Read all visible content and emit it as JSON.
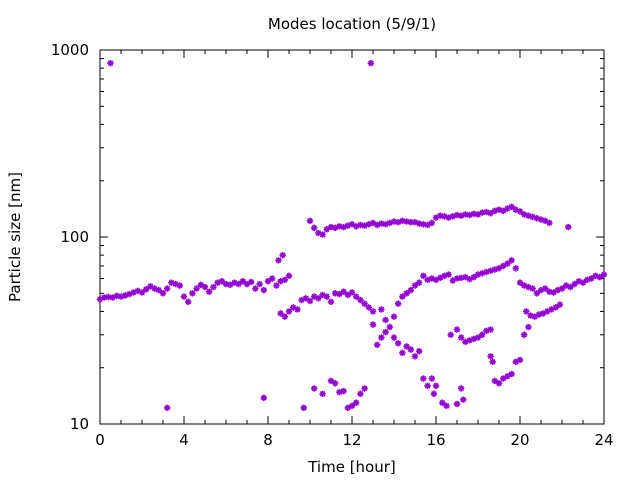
{
  "chart_data": {
    "type": "scatter",
    "title": "Modes location (5/9/1)",
    "xlabel": "Time [hour]",
    "ylabel": "Particle size [nm]",
    "xlim": [
      0,
      24
    ],
    "ylim": [
      10,
      1000
    ],
    "yscale": "log",
    "grid": false,
    "legend": "none",
    "marker_color": "#9400d3",
    "x_ticks": [
      0,
      4,
      8,
      12,
      16,
      20,
      24
    ],
    "x_tick_labels": [
      "0",
      "4",
      "8",
      "12",
      "16",
      "20",
      "24"
    ],
    "y_ticks": [
      10,
      100,
      1000
    ],
    "y_tick_labels": [
      "10",
      "100",
      "1000"
    ],
    "series": [
      {
        "values": [
          [
            0.5,
            850
          ],
          [
            12.9,
            850
          ],
          [
            3.2,
            12.2
          ],
          [
            7.8,
            13.8
          ],
          [
            9.7,
            12.2
          ],
          [
            0.0,
            46.5
          ],
          [
            0.2,
            47.5
          ],
          [
            0.4,
            47.8
          ],
          [
            0.6,
            47.5
          ],
          [
            0.8,
            48.5
          ],
          [
            1.0,
            48.0
          ],
          [
            1.2,
            48.7
          ],
          [
            1.4,
            49.5
          ],
          [
            1.6,
            50.5
          ],
          [
            1.8,
            51.5
          ],
          [
            2.0,
            50.5
          ],
          [
            2.2,
            52.5
          ],
          [
            2.4,
            54.5
          ],
          [
            2.6,
            53.0
          ],
          [
            2.8,
            52.0
          ],
          [
            3.0,
            50.0
          ],
          [
            3.2,
            53.0
          ],
          [
            3.4,
            57.0
          ],
          [
            3.6,
            56.0
          ],
          [
            3.8,
            55.0
          ],
          [
            4.0,
            48.0
          ],
          [
            4.2,
            45.0
          ],
          [
            4.4,
            50.0
          ],
          [
            4.6,
            53.0
          ],
          [
            4.8,
            55.5
          ],
          [
            5.0,
            54.0
          ],
          [
            5.2,
            51.0
          ],
          [
            5.4,
            54.0
          ],
          [
            5.6,
            57.0
          ],
          [
            5.8,
            58.0
          ],
          [
            6.0,
            56.0
          ],
          [
            6.2,
            55.5
          ],
          [
            6.4,
            57.0
          ],
          [
            6.6,
            56.0
          ],
          [
            6.8,
            58.0
          ],
          [
            7.0,
            56.0
          ],
          [
            7.2,
            57.5
          ],
          [
            7.4,
            53.0
          ],
          [
            7.6,
            56.0
          ],
          [
            7.8,
            52.0
          ],
          [
            8.0,
            58.0
          ],
          [
            8.2,
            60.0
          ],
          [
            8.4,
            55.0
          ],
          [
            8.6,
            58.0
          ],
          [
            8.8,
            59.0
          ],
          [
            9.0,
            62.0
          ],
          [
            8.5,
            75.0
          ],
          [
            8.7,
            80.0
          ],
          [
            8.6,
            39.0
          ],
          [
            8.8,
            37.5
          ],
          [
            9.0,
            40.0
          ],
          [
            9.2,
            42.0
          ],
          [
            9.4,
            41.0
          ],
          [
            9.6,
            46.0
          ],
          [
            9.8,
            47.0
          ],
          [
            10.0,
            45.5
          ],
          [
            10.2,
            48.0
          ],
          [
            10.4,
            47.0
          ],
          [
            10.6,
            49.0
          ],
          [
            10.8,
            48.0
          ],
          [
            11.0,
            45.0
          ],
          [
            11.2,
            50.0
          ],
          [
            11.4,
            49.5
          ],
          [
            11.6,
            51.0
          ],
          [
            11.8,
            49.0
          ],
          [
            12.0,
            50.5
          ],
          [
            12.2,
            48.0
          ],
          [
            12.4,
            46.0
          ],
          [
            12.6,
            44.0
          ],
          [
            12.8,
            42.0
          ],
          [
            13.0,
            40.0
          ],
          [
            10.0,
            122
          ],
          [
            10.2,
            112
          ],
          [
            10.4,
            105
          ],
          [
            10.6,
            103
          ],
          [
            10.8,
            110
          ],
          [
            11.0,
            113
          ],
          [
            11.2,
            112
          ],
          [
            11.4,
            114
          ],
          [
            11.6,
            113
          ],
          [
            11.8,
            115
          ],
          [
            12.0,
            117
          ],
          [
            12.2,
            114
          ],
          [
            12.4,
            116
          ],
          [
            12.6,
            115
          ],
          [
            12.8,
            117
          ],
          [
            13.0,
            119
          ],
          [
            13.2,
            116
          ],
          [
            13.4,
            118
          ],
          [
            13.6,
            117
          ],
          [
            13.8,
            119
          ],
          [
            14.0,
            121
          ],
          [
            14.2,
            120
          ],
          [
            14.4,
            122
          ],
          [
            14.6,
            121
          ],
          [
            14.8,
            120
          ],
          [
            15.0,
            120
          ],
          [
            15.2,
            118
          ],
          [
            15.4,
            117
          ],
          [
            15.6,
            116
          ],
          [
            15.8,
            119
          ],
          [
            16.0,
            127
          ],
          [
            16.2,
            130
          ],
          [
            16.4,
            129
          ],
          [
            16.6,
            127
          ],
          [
            16.8,
            129
          ],
          [
            17.0,
            131
          ],
          [
            17.2,
            130
          ],
          [
            17.4,
            132
          ],
          [
            17.6,
            131
          ],
          [
            17.8,
            133
          ],
          [
            18.0,
            132
          ],
          [
            18.2,
            135
          ],
          [
            18.4,
            136
          ],
          [
            18.6,
            134
          ],
          [
            18.8,
            138
          ],
          [
            19.0,
            140
          ],
          [
            19.2,
            138
          ],
          [
            19.4,
            142
          ],
          [
            19.6,
            145
          ],
          [
            19.8,
            140
          ],
          [
            20.0,
            137
          ],
          [
            20.2,
            132
          ],
          [
            20.4,
            130
          ],
          [
            20.6,
            128
          ],
          [
            20.8,
            126
          ],
          [
            21.0,
            124
          ],
          [
            21.2,
            122
          ],
          [
            21.4,
            119
          ],
          [
            22.3,
            113
          ],
          [
            10.2,
            15.5
          ],
          [
            10.6,
            14.5
          ],
          [
            11.0,
            17.0
          ],
          [
            11.2,
            16.5
          ],
          [
            11.4,
            14.8
          ],
          [
            11.6,
            15.0
          ],
          [
            11.8,
            12.2
          ],
          [
            12.0,
            12.5
          ],
          [
            12.2,
            13.0
          ],
          [
            12.4,
            14.5
          ],
          [
            12.6,
            15.5
          ],
          [
            13.0,
            34.0
          ],
          [
            13.2,
            26.5
          ],
          [
            13.4,
            29.0
          ],
          [
            13.6,
            31.0
          ],
          [
            13.8,
            33.0
          ],
          [
            14.0,
            29.0
          ],
          [
            14.2,
            27.0
          ],
          [
            14.4,
            24.0
          ],
          [
            14.6,
            26.0
          ],
          [
            14.8,
            25.0
          ],
          [
            15.0,
            23.0
          ],
          [
            15.2,
            24.5
          ],
          [
            13.4,
            41.0
          ],
          [
            13.6,
            36.0
          ],
          [
            14.0,
            37.5
          ],
          [
            14.2,
            44.0
          ],
          [
            14.4,
            48.0
          ],
          [
            14.6,
            50.0
          ],
          [
            14.8,
            52.0
          ],
          [
            15.0,
            55.0
          ],
          [
            15.2,
            57.0
          ],
          [
            15.4,
            62.0
          ],
          [
            15.6,
            59.0
          ],
          [
            15.8,
            60.0
          ],
          [
            16.0,
            59.0
          ],
          [
            16.2,
            60.5
          ],
          [
            16.4,
            62.0
          ],
          [
            16.6,
            63.0
          ],
          [
            16.8,
            58.5
          ],
          [
            17.0,
            60.0
          ],
          [
            17.2,
            60.5
          ],
          [
            17.4,
            61.0
          ],
          [
            17.6,
            59.5
          ],
          [
            17.8,
            61.0
          ],
          [
            18.0,
            63.0
          ],
          [
            18.2,
            64.0
          ],
          [
            18.4,
            65.0
          ],
          [
            18.6,
            66.0
          ],
          [
            18.8,
            67.0
          ],
          [
            19.0,
            68.0
          ],
          [
            19.2,
            70.0
          ],
          [
            19.4,
            72.0
          ],
          [
            19.6,
            75.0
          ],
          [
            19.8,
            68.0
          ],
          [
            20.0,
            57.0
          ],
          [
            20.2,
            55.0
          ],
          [
            20.4,
            54.0
          ],
          [
            20.6,
            53.0
          ],
          [
            20.8,
            50.0
          ],
          [
            21.0,
            52.0
          ],
          [
            21.2,
            53.0
          ],
          [
            21.4,
            51.0
          ],
          [
            21.6,
            50.5
          ],
          [
            21.8,
            52.0
          ],
          [
            22.0,
            53.0
          ],
          [
            22.2,
            55.0
          ],
          [
            22.4,
            54.0
          ],
          [
            22.6,
            56.0
          ],
          [
            22.8,
            58.0
          ],
          [
            23.0,
            57.0
          ],
          [
            23.2,
            59.0
          ],
          [
            23.4,
            60.0
          ],
          [
            23.6,
            62.0
          ],
          [
            23.8,
            61.0
          ],
          [
            24.0,
            63.0
          ],
          [
            15.4,
            17.5
          ],
          [
            15.6,
            16.0
          ],
          [
            15.8,
            17.5
          ],
          [
            16.0,
            16.0
          ],
          [
            15.9,
            14.5
          ],
          [
            16.3,
            13.0
          ],
          [
            16.5,
            12.5
          ],
          [
            16.7,
            30.0
          ],
          [
            17.0,
            32.0
          ],
          [
            17.2,
            29.0
          ],
          [
            17.4,
            27.5
          ],
          [
            17.6,
            28.0
          ],
          [
            17.8,
            28.5
          ],
          [
            18.0,
            29.0
          ],
          [
            18.2,
            30.0
          ],
          [
            18.4,
            31.5
          ],
          [
            18.6,
            32.0
          ],
          [
            17.0,
            12.8
          ],
          [
            17.2,
            15.5
          ],
          [
            17.3,
            13.5
          ],
          [
            18.6,
            23.0
          ],
          [
            18.7,
            21.5
          ],
          [
            18.8,
            17.0
          ],
          [
            19.0,
            16.5
          ],
          [
            19.2,
            17.5
          ],
          [
            19.4,
            18.0
          ],
          [
            19.6,
            18.5
          ],
          [
            19.8,
            21.5
          ],
          [
            20.0,
            22.0
          ],
          [
            20.2,
            30.0
          ],
          [
            20.4,
            33.0
          ],
          [
            20.3,
            40.0
          ],
          [
            20.5,
            38.0
          ],
          [
            20.7,
            37.5
          ],
          [
            20.9,
            38.5
          ],
          [
            21.1,
            39.0
          ],
          [
            21.3,
            40.0
          ],
          [
            21.5,
            41.0
          ],
          [
            21.7,
            42.0
          ],
          [
            21.9,
            43.5
          ]
        ]
      }
    ]
  }
}
